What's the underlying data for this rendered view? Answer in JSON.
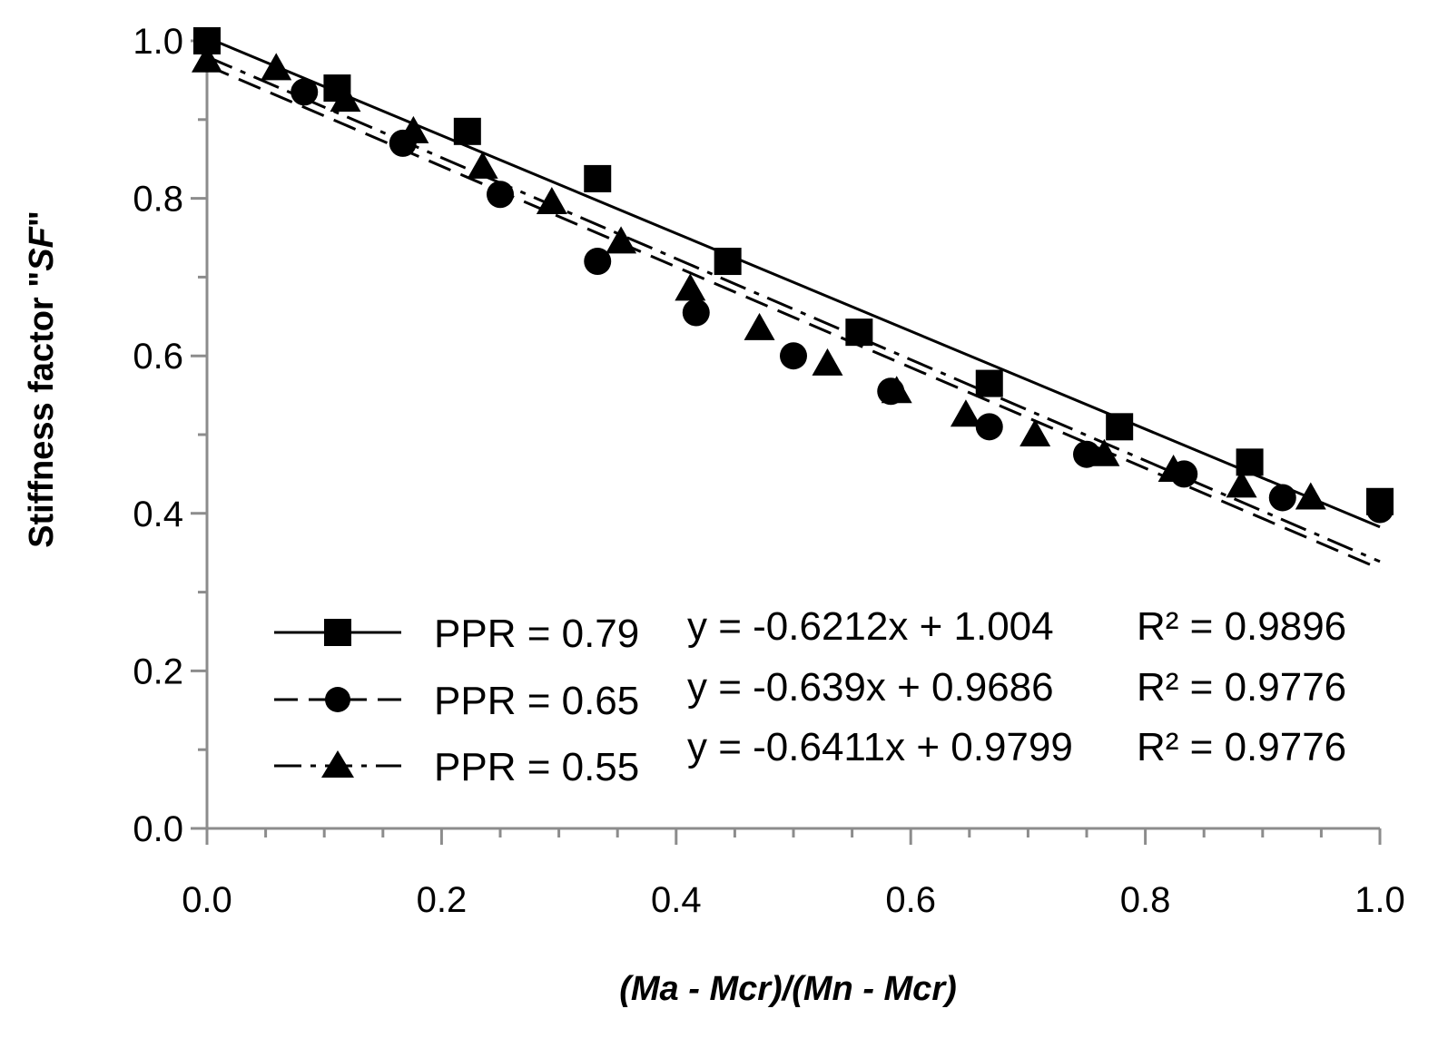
{
  "chart_data": {
    "type": "scatter",
    "title": "",
    "xlabel": "(Ma - Mcr)/(Mn - Mcr)",
    "ylabel_prefix": "Stiffness factor \"",
    "ylabel_italic": "SF",
    "ylabel_suffix": "\"",
    "xlim": [
      0.0,
      1.0
    ],
    "ylim": [
      0.0,
      1.0
    ],
    "xticks": [
      "0.0",
      "0.2",
      "0.4",
      "0.6",
      "0.8",
      "1.0"
    ],
    "yticks": [
      "0.0",
      "0.2",
      "0.4",
      "0.6",
      "0.8",
      "1.0"
    ],
    "grid": false,
    "legend_position": "bottom-left",
    "series": [
      {
        "name": "PPR = 0.79",
        "marker": "square",
        "line_style": "solid",
        "equation": "y = -0.6212x + 1.004",
        "r2": "R² = 0.9896",
        "slope": -0.6212,
        "intercept": 1.004,
        "x": [
          0.0,
          0.111,
          0.222,
          0.333,
          0.444,
          0.556,
          0.667,
          0.778,
          0.889,
          1.0
        ],
        "y": [
          1.0,
          0.94,
          0.885,
          0.825,
          0.72,
          0.63,
          0.565,
          0.51,
          0.465,
          0.415
        ]
      },
      {
        "name": "PPR = 0.65",
        "marker": "circle",
        "line_style": "dashed",
        "equation": "y = -0.639x + 0.9686",
        "r2": "R² = 0.9776",
        "slope": -0.639,
        "intercept": 0.9686,
        "x": [
          0.0,
          0.083,
          0.167,
          0.25,
          0.333,
          0.417,
          0.5,
          0.583,
          0.667,
          0.75,
          0.833,
          0.917,
          1.0
        ],
        "y": [
          1.0,
          0.935,
          0.87,
          0.805,
          0.72,
          0.655,
          0.6,
          0.555,
          0.51,
          0.475,
          0.45,
          0.42,
          0.405
        ]
      },
      {
        "name": "PPR = 0.55",
        "marker": "triangle",
        "line_style": "dash-dot",
        "equation": "y = -0.6411x + 0.9799",
        "r2": "R² = 0.9776",
        "slope": -0.6411,
        "intercept": 0.9799,
        "x": [
          0.0,
          0.059,
          0.118,
          0.176,
          0.235,
          0.294,
          0.353,
          0.412,
          0.471,
          0.529,
          0.588,
          0.647,
          0.706,
          0.765,
          0.824,
          0.882,
          0.941
        ],
        "y": [
          0.975,
          0.965,
          0.925,
          0.885,
          0.84,
          0.795,
          0.745,
          0.685,
          0.635,
          0.59,
          0.555,
          0.525,
          0.5,
          0.475,
          0.455,
          0.435,
          0.42
        ]
      }
    ]
  }
}
